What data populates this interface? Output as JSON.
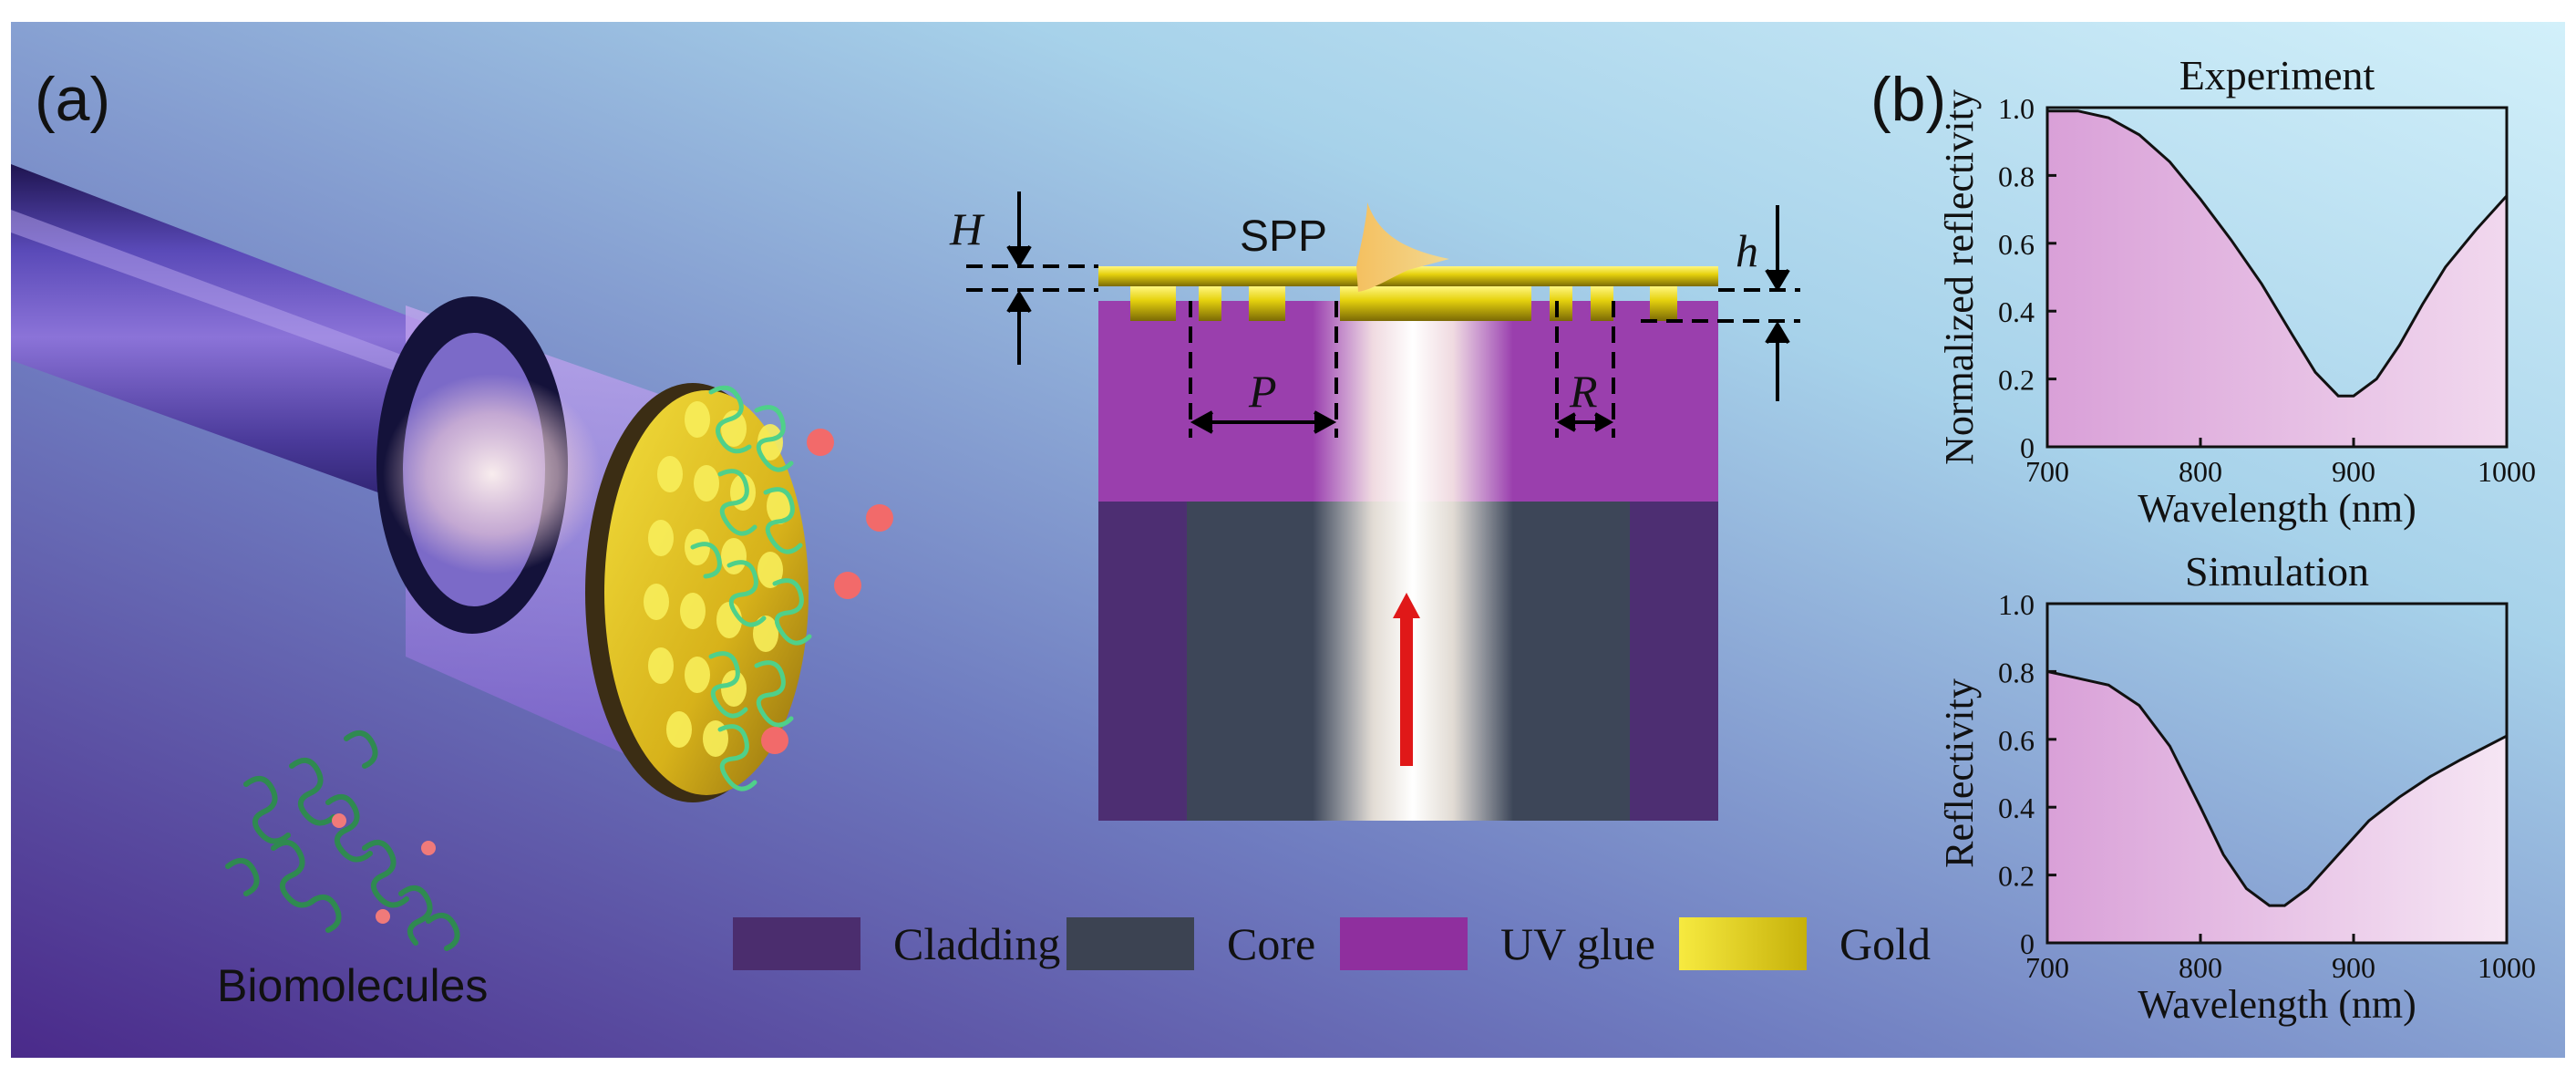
{
  "figure": {
    "panel_a": "(a)",
    "panel_b": "(b)",
    "biomolecules_label": "Biomolecules",
    "cross_section": {
      "spp": "SPP",
      "H": "H",
      "h": "h",
      "P": "P",
      "R": "R"
    },
    "legend": [
      {
        "label": "Cladding",
        "color": "#4b2d6e"
      },
      {
        "label": "Core",
        "color": "#3c4352"
      },
      {
        "label": "UV glue",
        "color": "#8f2f9e"
      },
      {
        "label": "Gold",
        "color": "#e3d40f"
      }
    ]
  },
  "chart_data": [
    {
      "type": "area",
      "title": "Experiment",
      "xlabel": "Wavelength  (nm)",
      "ylabel": "Normalized reflectivity",
      "xlim": [
        700,
        1000
      ],
      "ylim": [
        0,
        1.0
      ],
      "xticks": [
        "700",
        "800",
        "900",
        "1000"
      ],
      "yticks": [
        "0",
        "0.2",
        "0.4",
        "0.6",
        "0.8",
        "1.0"
      ],
      "x": [
        700,
        720,
        740,
        760,
        780,
        800,
        820,
        840,
        860,
        875,
        890,
        900,
        915,
        930,
        945,
        960,
        980,
        1000
      ],
      "y": [
        0.99,
        0.99,
        0.97,
        0.92,
        0.84,
        0.73,
        0.61,
        0.48,
        0.33,
        0.22,
        0.15,
        0.15,
        0.2,
        0.3,
        0.42,
        0.53,
        0.64,
        0.74
      ]
    },
    {
      "type": "area",
      "title": "Simulation",
      "xlabel": "Wavelength  (nm)",
      "ylabel": "Reflectivity",
      "xlim": [
        700,
        1000
      ],
      "ylim": [
        0,
        1.0
      ],
      "xticks": [
        "700",
        "800",
        "900",
        "1000"
      ],
      "yticks": [
        "0",
        "0.2",
        "0.4",
        "0.6",
        "0.8",
        "1.0"
      ],
      "x": [
        700,
        720,
        740,
        760,
        780,
        800,
        815,
        830,
        845,
        855,
        870,
        890,
        910,
        930,
        950,
        970,
        1000
      ],
      "y": [
        0.8,
        0.78,
        0.76,
        0.7,
        0.58,
        0.4,
        0.26,
        0.16,
        0.11,
        0.11,
        0.16,
        0.26,
        0.36,
        0.43,
        0.49,
        0.54,
        0.61
      ]
    }
  ]
}
